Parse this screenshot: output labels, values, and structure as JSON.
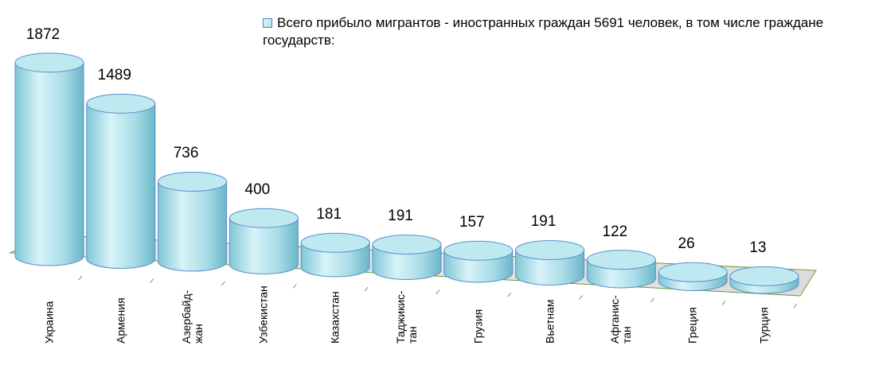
{
  "chart_data": {
    "type": "bar3d",
    "series": [
      {
        "name": "Всего прибыло мигрантов - иностранных граждан 5691 человек, в том числе граждане государств:",
        "color": "#a8dde8",
        "values": [
          1872,
          1489,
          736,
          400,
          181,
          191,
          157,
          191,
          122,
          26,
          13
        ]
      }
    ],
    "categories": [
      "Украина",
      "Армения",
      "Азербайд-\nжан",
      "Узбекистан",
      "Казахстан",
      "Таджикис-\nтан",
      "Грузия",
      "Вьетнам",
      "Афганис-\nтан",
      "Греция",
      "Турция"
    ],
    "legend": "top-right"
  }
}
